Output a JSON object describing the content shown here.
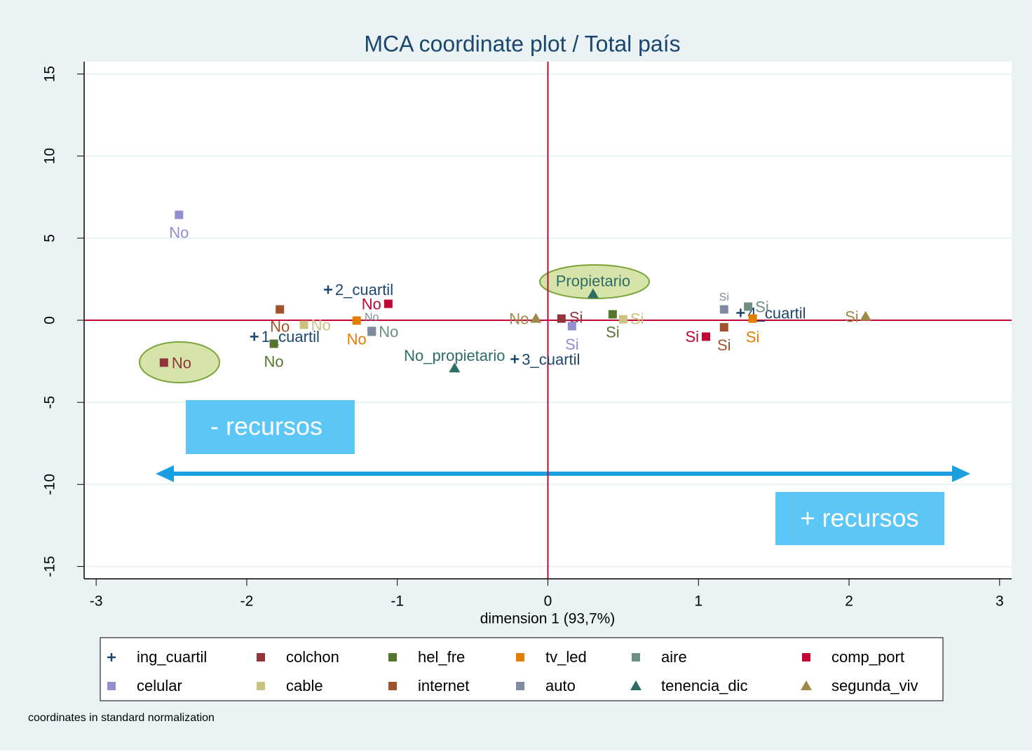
{
  "chart_data": {
    "type": "scatter",
    "title": "MCA coordinate plot / Total país",
    "x_label": "dimension 1 (93,7%)",
    "note": "coordinates in standard normalization",
    "annotations": [
      "- recursos",
      "+ recursos"
    ],
    "xlim": [
      -3.08,
      3.08
    ],
    "ylim": [
      -15.75,
      15.75
    ],
    "xticks": [
      -3,
      -2,
      -1,
      0,
      1,
      2,
      3
    ],
    "yticks": [
      -15,
      -10,
      -5,
      0,
      5,
      10,
      15
    ],
    "grid": true,
    "reference_lines": {
      "x": 0,
      "y": 0,
      "color": "#c10534"
    },
    "series": [
      {
        "name": "ing_cuartil",
        "color": "#1a476f",
        "marker": "plus",
        "x": [
          -1.46,
          -1.95,
          -0.22,
          1.28
        ],
        "y": [
          1.86,
          -1.0,
          -2.37,
          0.45
        ],
        "labels": [
          "2_cuartil",
          "1_cuartil",
          "3_cuartil",
          "4_cuartil"
        ]
      },
      {
        "name": "colchon",
        "color": "#90353b",
        "marker": "square",
        "x": [
          0.09,
          -2.55
        ],
        "y": [
          0.1,
          -2.58
        ],
        "labels": [
          "Si",
          "No"
        ]
      },
      {
        "name": "hel_fre",
        "color": "#55752f",
        "marker": "square",
        "x": [
          -1.82,
          0.43
        ],
        "y": [
          -1.43,
          0.36
        ],
        "labels": [
          "No",
          "Si"
        ]
      },
      {
        "name": "tv_led",
        "color": "#e37e00",
        "marker": "square",
        "x": [
          -1.27,
          1.36
        ],
        "y": [
          -0.02,
          0.1
        ],
        "labels": [
          "No",
          "Si"
        ]
      },
      {
        "name": "aire",
        "color": "#6e8e84",
        "marker": "square",
        "x": [
          -1.17,
          1.33
        ],
        "y": [
          -0.7,
          0.83
        ],
        "labels": [
          "No",
          "Si"
        ]
      },
      {
        "name": "comp_port",
        "color": "#c10534",
        "marker": "square",
        "x": [
          -1.06,
          1.05
        ],
        "y": [
          1.0,
          -1.0
        ],
        "labels": [
          "No",
          "Si"
        ]
      },
      {
        "name": "celular",
        "color": "#938dd2",
        "marker": "square",
        "x": [
          -2.45,
          0.16
        ],
        "y": [
          6.42,
          -0.36
        ],
        "labels": [
          "No",
          "Si"
        ]
      },
      {
        "name": "cable",
        "color": "#cac27e",
        "marker": "square",
        "x": [
          -1.62,
          0.5
        ],
        "y": [
          -0.28,
          0.06
        ],
        "labels": [
          "No",
          "Si"
        ]
      },
      {
        "name": "internet",
        "color": "#a0522d",
        "marker": "square",
        "x": [
          -1.78,
          1.17
        ],
        "y": [
          0.66,
          -0.43
        ],
        "labels": [
          "No",
          "Si"
        ]
      },
      {
        "name": "auto",
        "color": "#7e8ba0",
        "marker": "square",
        "x": [
          -1.17,
          1.17
        ],
        "y": [
          -0.65,
          0.66
        ],
        "labels": [
          "No",
          "Si"
        ]
      },
      {
        "name": "tenencia_dic",
        "color": "#2d6d66",
        "marker": "triangle",
        "x": [
          0.3,
          -0.62
        ],
        "y": [
          1.6,
          -2.92
        ],
        "labels": [
          "Propietario",
          "No_propietario"
        ]
      },
      {
        "name": "segunda_viv",
        "color": "#9c8847",
        "marker": "triangle",
        "x": [
          -0.08,
          2.11
        ],
        "y": [
          0.1,
          0.23
        ],
        "labels": [
          "No",
          "Si"
        ]
      }
    ]
  }
}
